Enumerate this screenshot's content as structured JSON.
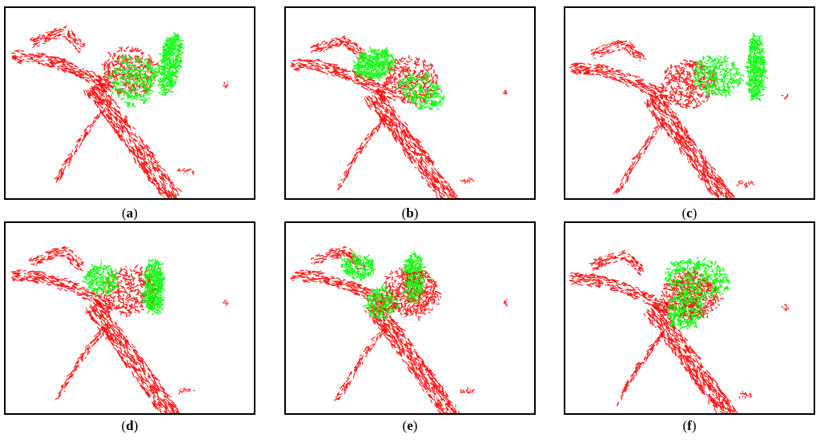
{
  "colors": {
    "source_cloud": "#ff0000",
    "target_cloud": "#00ff00",
    "frame": "#000000",
    "background": "#ffffff"
  },
  "panels": [
    {
      "label": "a"
    },
    {
      "label": "b"
    },
    {
      "label": "c"
    },
    {
      "label": "d"
    },
    {
      "label": "e"
    },
    {
      "label": "f"
    }
  ]
}
